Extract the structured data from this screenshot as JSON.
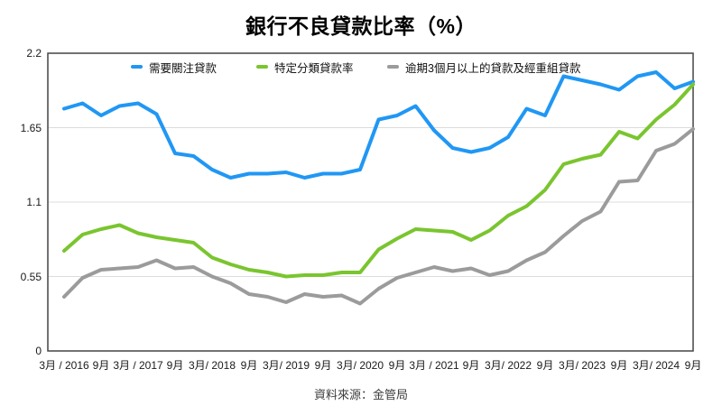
{
  "title": "銀行不良貸款比率（%）",
  "source": "資料來源：金管局",
  "colors": {
    "series_blue": "#2097F4",
    "series_green": "#7AC52F",
    "series_gray": "#9B9B9B",
    "axis_border": "#444444",
    "gridline": "#DCDCDC",
    "text": "#1a1a1a"
  },
  "chart_data": {
    "type": "line",
    "title": "銀行不良貸款比率（%）",
    "xlabel": "",
    "ylabel": "",
    "ylim": [
      0,
      2.2
    ],
    "yticks": [
      0,
      0.55,
      1.1,
      1.65,
      2.2
    ],
    "ytick_labels": [
      "0",
      "0.55",
      "1.1",
      "1.65",
      "2.2"
    ],
    "grid": true,
    "legend_position": "top",
    "x_frequency": "quarterly",
    "x_range": "2016年3月 至 2024年9月",
    "xtick_labels": [
      "3月 / 2016",
      "9月",
      "3月 / 2017",
      "9月",
      "3月/ 2018",
      "9月",
      "3月/ 2019",
      "9月",
      "3月/ 2020",
      "9月",
      "3月 / 2021",
      "9月",
      "3月/ 2022",
      "9月",
      "3月/ 2023",
      "9月",
      "3月/ 2024",
      "9月"
    ],
    "series": [
      {
        "name": "需要關注貸款",
        "color": "#2097F4",
        "values": [
          1.79,
          1.83,
          1.74,
          1.81,
          1.83,
          1.75,
          1.46,
          1.44,
          1.34,
          1.28,
          1.31,
          1.31,
          1.32,
          1.28,
          1.31,
          1.31,
          1.34,
          1.71,
          1.74,
          1.81,
          1.63,
          1.5,
          1.47,
          1.5,
          1.58,
          1.79,
          1.74,
          2.03,
          2.0,
          1.97,
          1.93,
          2.03,
          2.06,
          1.94,
          1.99
        ]
      },
      {
        "name": "特定分類貸款率",
        "color": "#7AC52F",
        "values": [
          0.74,
          0.86,
          0.9,
          0.93,
          0.87,
          0.84,
          0.82,
          0.8,
          0.69,
          0.64,
          0.6,
          0.58,
          0.55,
          0.56,
          0.56,
          0.58,
          0.58,
          0.75,
          0.83,
          0.9,
          0.89,
          0.88,
          0.82,
          0.89,
          1.0,
          1.07,
          1.19,
          1.38,
          1.42,
          1.45,
          1.62,
          1.57,
          1.71,
          1.82,
          1.97
        ]
      },
      {
        "name": "逾期3個月以上的貸款及經重組貸款",
        "color": "#9B9B9B",
        "values": [
          0.4,
          0.54,
          0.6,
          0.61,
          0.62,
          0.67,
          0.61,
          0.62,
          0.55,
          0.5,
          0.42,
          0.4,
          0.36,
          0.42,
          0.4,
          0.41,
          0.35,
          0.46,
          0.54,
          0.58,
          0.62,
          0.59,
          0.61,
          0.56,
          0.59,
          0.67,
          0.73,
          0.85,
          0.96,
          1.03,
          1.25,
          1.26,
          1.48,
          1.53,
          1.64
        ]
      }
    ]
  }
}
